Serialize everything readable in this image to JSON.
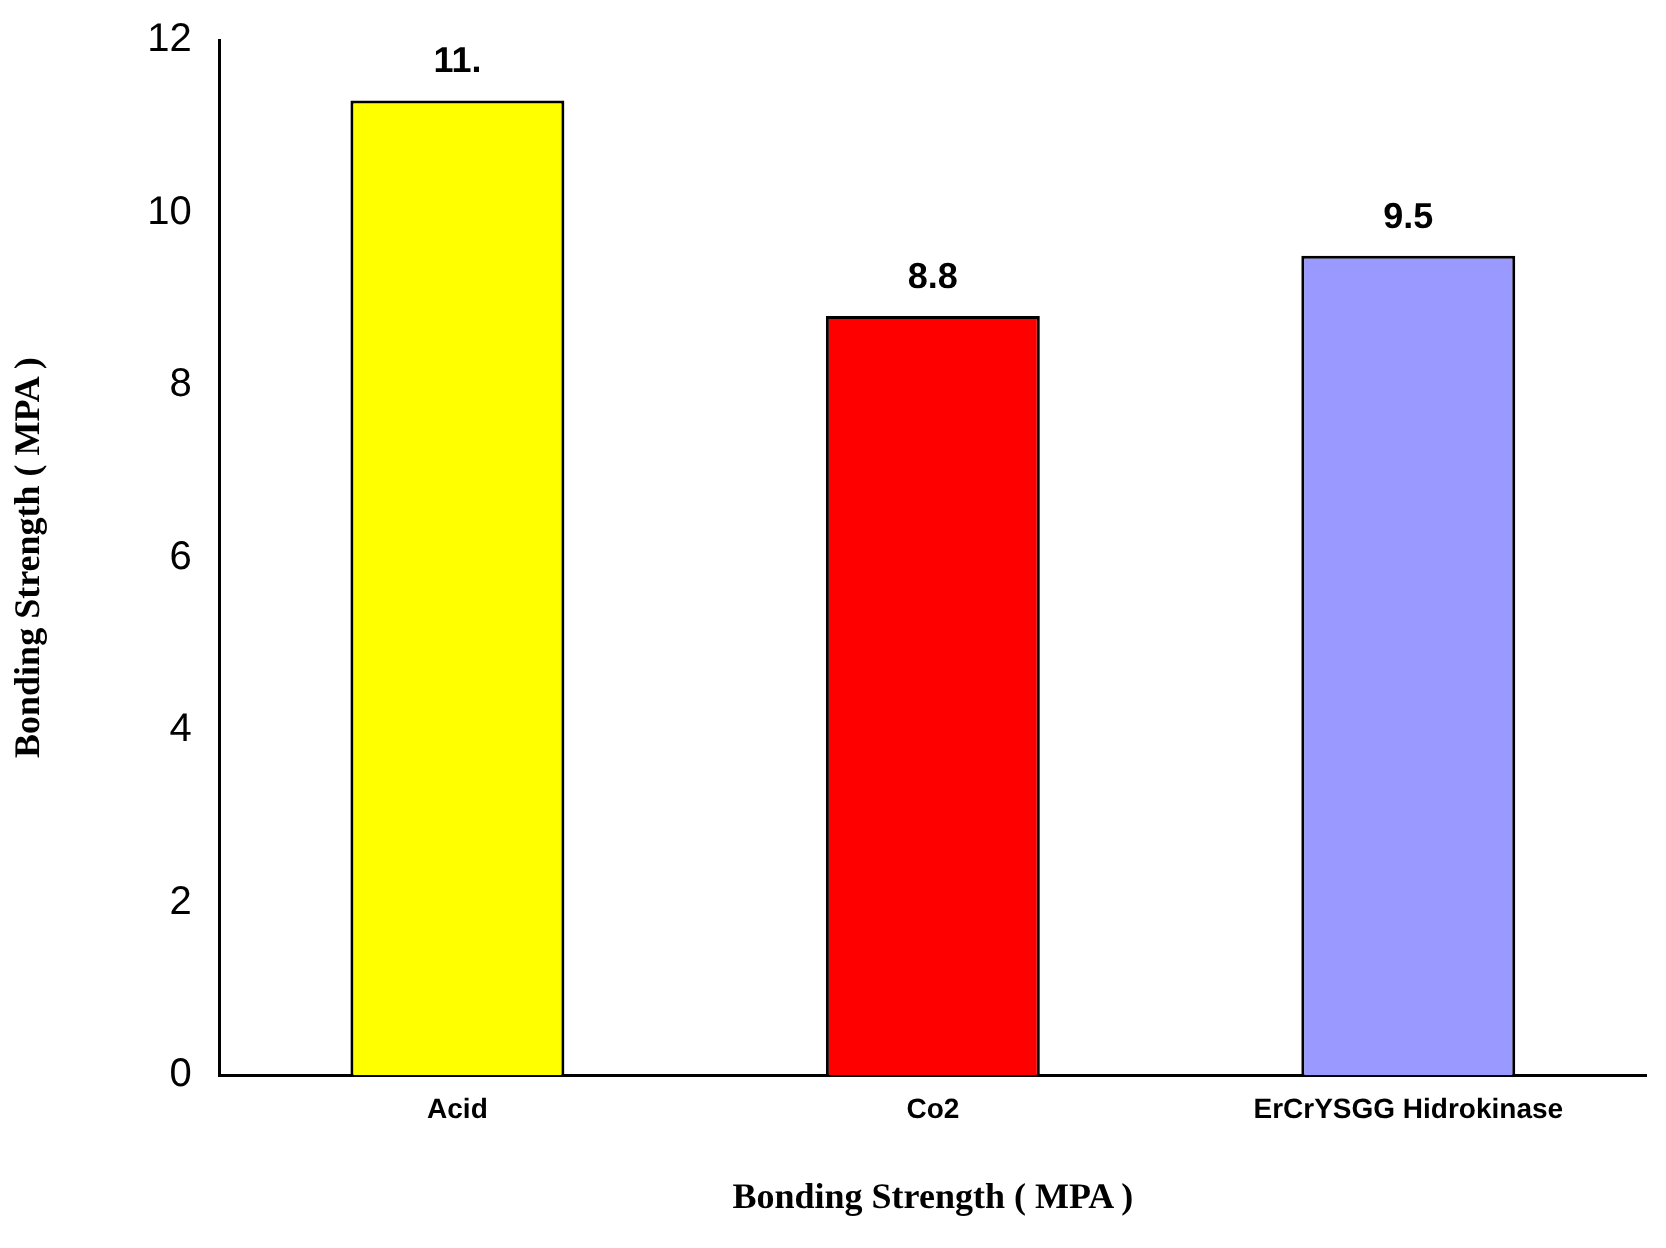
{
  "chart_data": {
    "type": "bar",
    "xlabel": "Bonding Strength ( MPA )",
    "ylabel": "Bonding Strength ( MPA )",
    "categories": [
      "Acid",
      "Co2",
      "ErCrYSGG Hidrokinase"
    ],
    "values": [
      11.3,
      8.8,
      9.5
    ],
    "value_labels": [
      "11.",
      "8.8",
      "9.5"
    ],
    "colors": [
      "#ffff00",
      "#ff0000",
      "#9999ff"
    ],
    "ylim": [
      0,
      12
    ],
    "yticks": [
      0,
      2,
      4,
      6,
      8,
      10,
      12
    ],
    "grid": false,
    "legend": false
  }
}
